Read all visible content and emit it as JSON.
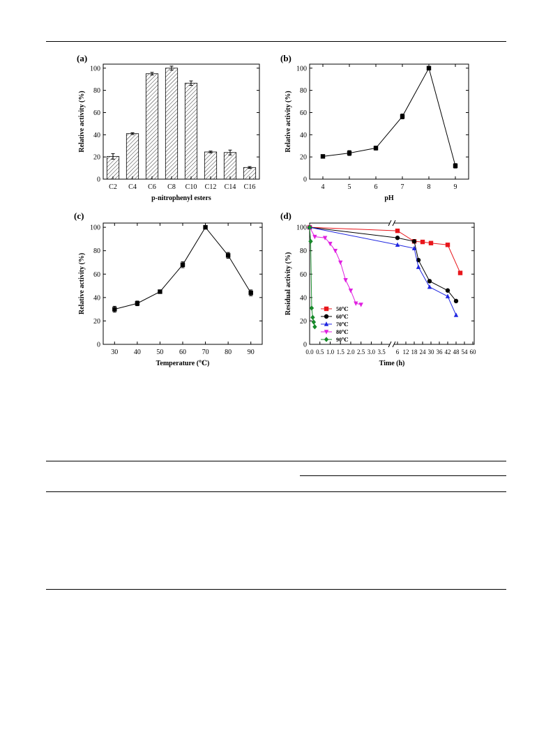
{
  "figure": {
    "panels": [
      {
        "label": "(a)"
      },
      {
        "label": "(b)"
      },
      {
        "label": "(c)"
      },
      {
        "label": "(d)"
      }
    ]
  },
  "chart_data": [
    {
      "panel": "(a)",
      "type": "bar",
      "xlabel": "p-nitrophenyl esters",
      "ylabel": "Relative activity (%)",
      "categories": [
        "C2",
        "C4",
        "C6",
        "C8",
        "C10",
        "C12",
        "C14",
        "C16"
      ],
      "values": [
        20.5,
        41,
        95,
        100,
        86.5,
        24.5,
        24,
        10.5
      ],
      "errors": [
        2.5,
        0.8,
        1.2,
        1.8,
        2.0,
        0.8,
        2.2,
        0.8
      ],
      "ylim": [
        0,
        100
      ],
      "yticks": [
        0,
        20,
        40,
        60,
        80,
        100
      ],
      "pattern": "hatched"
    },
    {
      "panel": "(b)",
      "type": "line",
      "xlabel": "pH",
      "ylabel": "Relative activity (%)",
      "x": [
        4,
        5,
        6,
        7,
        8,
        9
      ],
      "y": [
        20.5,
        23.5,
        28,
        56.5,
        100,
        12
      ],
      "errors": [
        0.8,
        2.2,
        1.8,
        2.2,
        1.5,
        2.0
      ],
      "xlim": [
        3.5,
        9.5
      ],
      "ylim": [
        0,
        100
      ],
      "xticks": [
        4,
        5,
        6,
        7,
        8,
        9
      ],
      "yticks": [
        0,
        20,
        40,
        60,
        80,
        100
      ]
    },
    {
      "panel": "(c)",
      "type": "line",
      "xlabel": "Temperature (℃)",
      "ylabel": "Relative activity (%)",
      "x": [
        30,
        40,
        50,
        60,
        70,
        80,
        90
      ],
      "y": [
        30,
        35,
        45,
        68,
        100,
        76,
        44
      ],
      "errors": [
        2.5,
        2.0,
        0.6,
        2.5,
        0.5,
        2.5,
        2.5
      ],
      "xlim": [
        25,
        95
      ],
      "ylim": [
        0,
        100
      ],
      "xticks": [
        30,
        40,
        50,
        60,
        70,
        80,
        90
      ],
      "yticks": [
        0,
        20,
        40,
        60,
        80,
        100
      ]
    },
    {
      "panel": "(d)",
      "type": "line",
      "xlabel": "Time (h)",
      "ylabel": "Residual activity (%)",
      "ylim": [
        0,
        100
      ],
      "yticks": [
        0,
        20,
        40,
        60,
        80,
        100
      ],
      "xticks_left": [
        "0.0",
        "0.5",
        "1.0",
        "1.5",
        "2.0",
        "2.5",
        "3.0",
        "3.5"
      ],
      "xticks_right": [
        "6",
        "12",
        "18",
        "24",
        "30",
        "36",
        "42",
        "48",
        "54",
        "60"
      ],
      "xlim_left": [
        0,
        3.8
      ],
      "xlim_right": [
        5,
        61
      ],
      "axis_break": true,
      "legend_position": "bottom-left",
      "series": [
        {
          "name": "50℃",
          "color": "#e8161b",
          "marker": "square",
          "x": [
            0,
            6,
            18,
            24,
            30,
            42,
            51
          ],
          "y": [
            100,
            97,
            88,
            87.5,
            86.5,
            85,
            61
          ]
        },
        {
          "name": "60℃",
          "color": "#000000",
          "marker": "circle",
          "x": [
            0,
            6,
            18,
            21,
            29,
            42,
            48
          ],
          "y": [
            100,
            91,
            88,
            72,
            54,
            46,
            37
          ]
        },
        {
          "name": "70℃",
          "color": "#1f26e0",
          "marker": "triangle-up",
          "x": [
            0,
            6,
            18,
            21,
            29,
            42,
            48
          ],
          "y": [
            100,
            85,
            82,
            66,
            49,
            41,
            25
          ]
        },
        {
          "name": "80℃",
          "color": "#e020e0",
          "marker": "triangle-down",
          "x": [
            0,
            0.25,
            0.75,
            1.0,
            1.25,
            1.5,
            1.75,
            2.0,
            2.25,
            2.5
          ],
          "y": [
            100,
            92,
            91,
            86,
            80,
            70,
            55,
            46,
            35,
            34
          ]
        },
        {
          "name": "90℃",
          "color": "#178a2a",
          "marker": "diamond",
          "x": [
            0,
            0.05,
            0.1,
            0.15,
            0.2,
            0.25
          ],
          "y": [
            100,
            88,
            31,
            23,
            19,
            15
          ]
        }
      ]
    }
  ]
}
